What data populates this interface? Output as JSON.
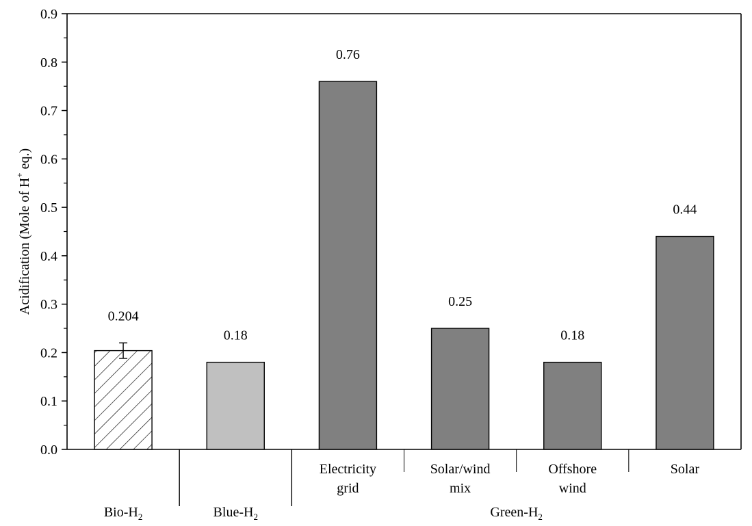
{
  "chart_data": {
    "type": "bar",
    "ylabel": {
      "prefix": "Acidification (Mole of H",
      "superscript": "+",
      "suffix": " eq.)"
    },
    "ylim": [
      0,
      0.9
    ],
    "yticks": [
      "0.0",
      "0.1",
      "0.2",
      "0.3",
      "0.4",
      "0.5",
      "0.6",
      "0.7",
      "0.8",
      "0.9"
    ],
    "grid": false,
    "bars": [
      {
        "category": "",
        "value": 0.204,
        "label": "0.204",
        "error": 0.016,
        "fill": "#ffffff",
        "hatch": true
      },
      {
        "category": "",
        "value": 0.18,
        "label": "0.18",
        "fill": "#c0c0c0",
        "hatch": false
      },
      {
        "category": "Electricity grid",
        "cat_lines": [
          "Electricity",
          "grid"
        ],
        "value": 0.76,
        "label": "0.76",
        "fill": "#808080",
        "hatch": false
      },
      {
        "category": "Solar/wind mix",
        "cat_lines": [
          "Solar/wind",
          "mix"
        ],
        "value": 0.25,
        "label": "0.25",
        "fill": "#808080",
        "hatch": false
      },
      {
        "category": "Offshore wind",
        "cat_lines": [
          "Offshore",
          "wind"
        ],
        "value": 0.18,
        "label": "0.18",
        "fill": "#808080",
        "hatch": false
      },
      {
        "category": "Solar",
        "cat_lines": [
          "Solar"
        ],
        "value": 0.44,
        "label": "0.44",
        "fill": "#808080",
        "hatch": false
      }
    ],
    "groups": [
      {
        "base": "Bio-H",
        "sub": "2",
        "bars": [
          0
        ]
      },
      {
        "base": "Blue-H",
        "sub": "2",
        "bars": [
          1
        ]
      },
      {
        "base": "Green-H",
        "sub": "2",
        "bars": [
          2,
          3,
          4,
          5
        ]
      }
    ]
  }
}
